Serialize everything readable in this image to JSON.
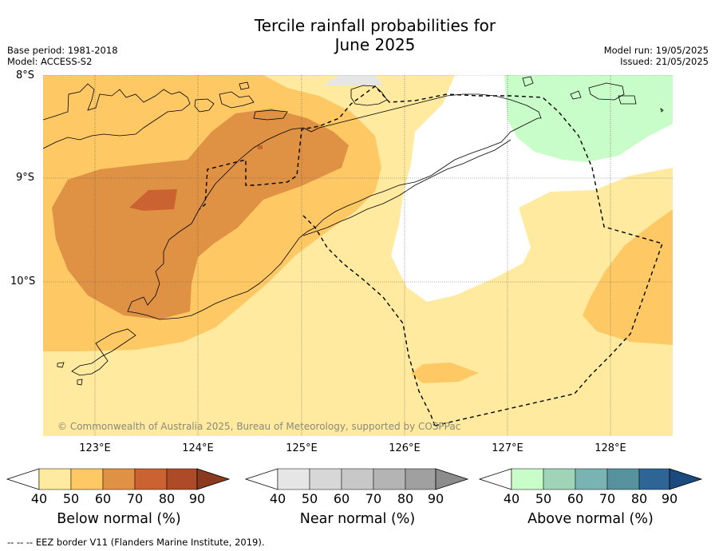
{
  "title": {
    "line1": "Tercile rainfall probabilities for",
    "line2": "June 2025"
  },
  "meta_left": {
    "base_period": "Base period: 1981-2018",
    "model": "Model: ACCESS-S2"
  },
  "meta_right": {
    "model_run": "Model run: 19/05/2025",
    "issued": "Issued: 21/05/2025"
  },
  "lat_labels": [
    "8°S",
    "9°S",
    "10°S"
  ],
  "lon_labels": [
    "123°E",
    "124°E",
    "125°E",
    "126°E",
    "127°E",
    "128°E"
  ],
  "copyright": "© Commonwealth of Australia 2025, Bureau of Meteorology, supported by COSPPac",
  "colors": {
    "below": [
      "#ffeaa0",
      "#fec965",
      "#e09244",
      "#cb6232",
      "#ad4a28",
      "#8c3a1e"
    ],
    "near": [
      "#e6e6e6",
      "#d7d7d7",
      "#c8c8c8",
      "#b4b4b4",
      "#a0a0a0",
      "#8c8c8c"
    ],
    "above": [
      "#c8fcc8",
      "#a0d4b9",
      "#7ab4b2",
      "#56919d",
      "#2e6496",
      "#1a4a7e"
    ]
  },
  "colorbars": [
    {
      "label": "Below normal (%)",
      "ticks": [
        "40",
        "50",
        "60",
        "70",
        "80",
        "90"
      ]
    },
    {
      "label": "Near normal (%)",
      "ticks": [
        "40",
        "50",
        "60",
        "70",
        "80",
        "90"
      ]
    },
    {
      "label": "Above normal (%)",
      "ticks": [
        "40",
        "50",
        "60",
        "70",
        "80",
        "90"
      ]
    }
  ],
  "footnote": "--  --  -- EEZ border V11 (Flanders Marine Institute, 2019)."
}
